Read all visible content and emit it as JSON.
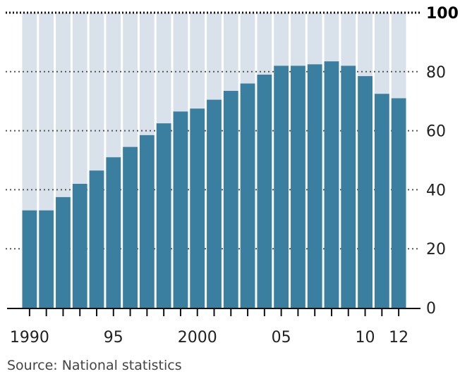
{
  "chart_data": {
    "type": "bar",
    "categories": [
      "1990",
      "1991",
      "1992",
      "1993",
      "1994",
      "1995",
      "1996",
      "1997",
      "1998",
      "1999",
      "2000",
      "2001",
      "2002",
      "2003",
      "2004",
      "2005",
      "2006",
      "2007",
      "2008",
      "2009",
      "2010",
      "2011",
      "2012"
    ],
    "values": [
      33,
      33,
      37.5,
      42,
      46.5,
      51,
      54.5,
      58.5,
      62.5,
      66.5,
      67.5,
      70.5,
      73.5,
      76,
      79,
      82,
      82,
      82.5,
      83.5,
      82,
      78.5,
      72.5,
      71
    ],
    "background_value": 100,
    "ylim": [
      0,
      100
    ],
    "y_ticks": [
      "100",
      "80",
      "60",
      "40",
      "20",
      "0"
    ],
    "x_tick_labels": [
      {
        "category": "1990",
        "label": "1990"
      },
      {
        "category": "1995",
        "label": "95"
      },
      {
        "category": "2000",
        "label": "2000"
      },
      {
        "category": "2005",
        "label": "05"
      },
      {
        "category": "2010",
        "label": "10"
      },
      {
        "category": "2012",
        "label": "12"
      }
    ],
    "grid": true,
    "bar_color": "#3a7f9f",
    "background_bar_color": "#d9e2ea"
  },
  "source": "Source: National statistics"
}
